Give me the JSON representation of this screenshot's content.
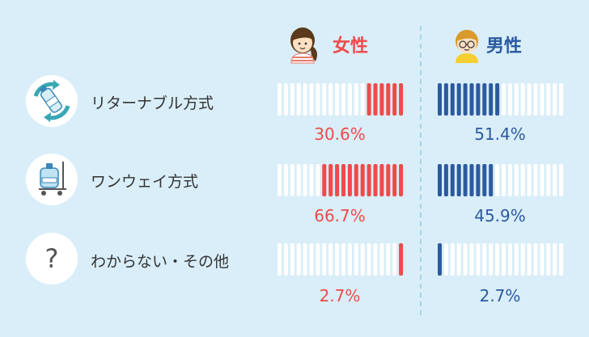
{
  "chart_data": {
    "type": "bar",
    "series": [
      {
        "name": "女性",
        "color": "#f04a4a",
        "icon": "woman-icon"
      },
      {
        "name": "男性",
        "color": "#2c5aa0",
        "icon": "man-icon"
      }
    ],
    "categories": [
      {
        "label": "リターナブル方式",
        "icon": "recycle-bottle-icon",
        "values": [
          30.6,
          51.4
        ],
        "value_labels": [
          "30.6%",
          "51.4%"
        ]
      },
      {
        "label": "ワンウェイ方式",
        "icon": "water-server-cart-icon",
        "values": [
          66.7,
          45.9
        ],
        "value_labels": [
          "66.7%",
          "45.9%"
        ]
      },
      {
        "label": "わからない・その他",
        "icon": "question-mark-icon",
        "values": [
          2.7,
          2.7
        ],
        "value_labels": [
          "2.7%",
          "2.7%"
        ]
      }
    ],
    "ylim": [
      0,
      100
    ],
    "colors": {
      "background": "#d9eef8",
      "empty_segment": "#ffffff",
      "label_text": "#333333",
      "divider": "#a9d3ec"
    }
  }
}
